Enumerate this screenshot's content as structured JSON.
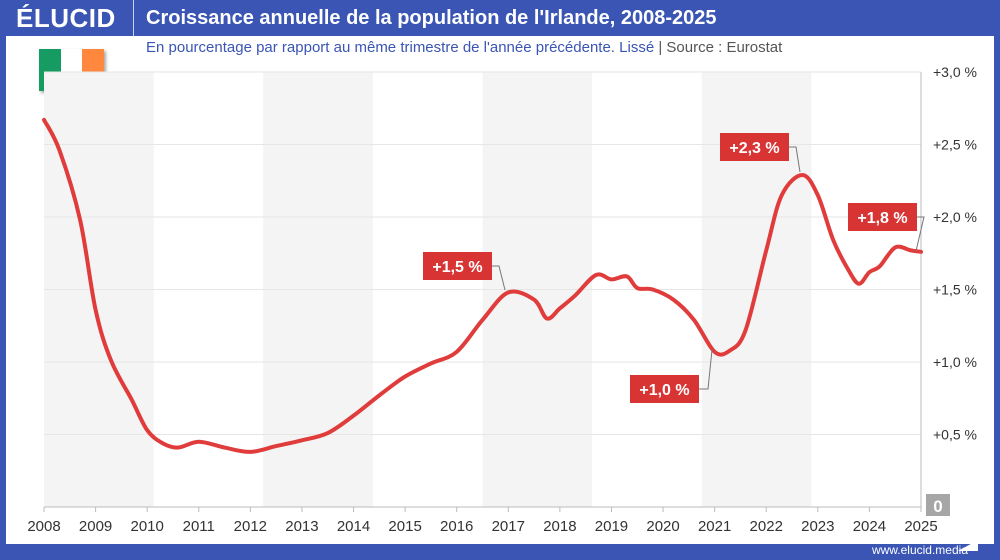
{
  "header": {
    "logo": "ÉLUCID",
    "title": "Croissance annuelle de la population de l'Irlande, 2008-2025"
  },
  "subtitle": {
    "text": "En pourcentage par rapport au même trimestre de l'année précédente. Lissé",
    "separator": "|",
    "source": "Source : Eurostat"
  },
  "flag": {
    "colors": [
      "#169b62",
      "#ffffff",
      "#ff883e"
    ]
  },
  "footer": {
    "url": "www.elucid.media"
  },
  "colors": {
    "frame": "#3a55b4",
    "line": "#e03c3c",
    "label_bg": "#d93434",
    "band": "#f4f4f4"
  },
  "chart_data": {
    "type": "line",
    "title": "Croissance annuelle de la population de l'Irlande, 2008-2025",
    "xlim": [
      2008,
      2025
    ],
    "ylim": [
      0,
      3.0
    ],
    "x_ticks": [
      "2008",
      "2009",
      "2010",
      "2011",
      "2012",
      "2013",
      "2014",
      "2015",
      "2016",
      "2017",
      "2018",
      "2019",
      "2020",
      "2021",
      "2022",
      "2023",
      "2024",
      "2025"
    ],
    "y_ticks": [
      {
        "v": 0.5,
        "label": "+0,5 %"
      },
      {
        "v": 1.0,
        "label": "+1,0 %"
      },
      {
        "v": 1.5,
        "label": "+1,5 %"
      },
      {
        "v": 2.0,
        "label": "+2,0 %"
      },
      {
        "v": 2.5,
        "label": "+2,5 %"
      },
      {
        "v": 3.0,
        "label": "+3,0 %"
      }
    ],
    "zero_label": "0",
    "grid": true,
    "axis_side": "right",
    "series": [
      {
        "x": [
          2008.0,
          2008.3,
          2008.7,
          2009.0,
          2009.3,
          2009.7,
          2010.0,
          2010.3,
          2010.6,
          2011.0,
          2011.5,
          2012.0,
          2012.5,
          2013.0,
          2013.5,
          2014.0,
          2014.5,
          2015.0,
          2015.5,
          2016.0,
          2016.5,
          2017.0,
          2017.5,
          2017.75,
          2018.0,
          2018.3,
          2018.7,
          2019.0,
          2019.3,
          2019.5,
          2019.8,
          2020.2,
          2020.6,
          2021.0,
          2021.3,
          2021.6,
          2022.0,
          2022.3,
          2022.7,
          2023.0,
          2023.3,
          2023.6,
          2023.8,
          2024.0,
          2024.2,
          2024.5,
          2024.8,
          2025.0
        ],
        "y": [
          2.67,
          2.46,
          1.98,
          1.36,
          1.01,
          0.74,
          0.53,
          0.44,
          0.41,
          0.45,
          0.41,
          0.38,
          0.42,
          0.46,
          0.51,
          0.63,
          0.77,
          0.9,
          0.99,
          1.07,
          1.29,
          1.48,
          1.43,
          1.3,
          1.37,
          1.46,
          1.6,
          1.57,
          1.59,
          1.51,
          1.5,
          1.43,
          1.29,
          1.07,
          1.08,
          1.22,
          1.77,
          2.15,
          2.29,
          2.15,
          1.84,
          1.63,
          1.54,
          1.62,
          1.66,
          1.79,
          1.77,
          1.76
        ]
      }
    ],
    "annotations": [
      {
        "label": "+1,5 %",
        "x": 2017.0,
        "y": 1.48
      },
      {
        "label": "+1,0 %",
        "x": 2021.0,
        "y": 1.07
      },
      {
        "label": "+2,3 %",
        "x": 2022.7,
        "y": 2.29
      },
      {
        "label": "+1,8 %",
        "x": 2025.0,
        "y": 1.76
      }
    ]
  }
}
